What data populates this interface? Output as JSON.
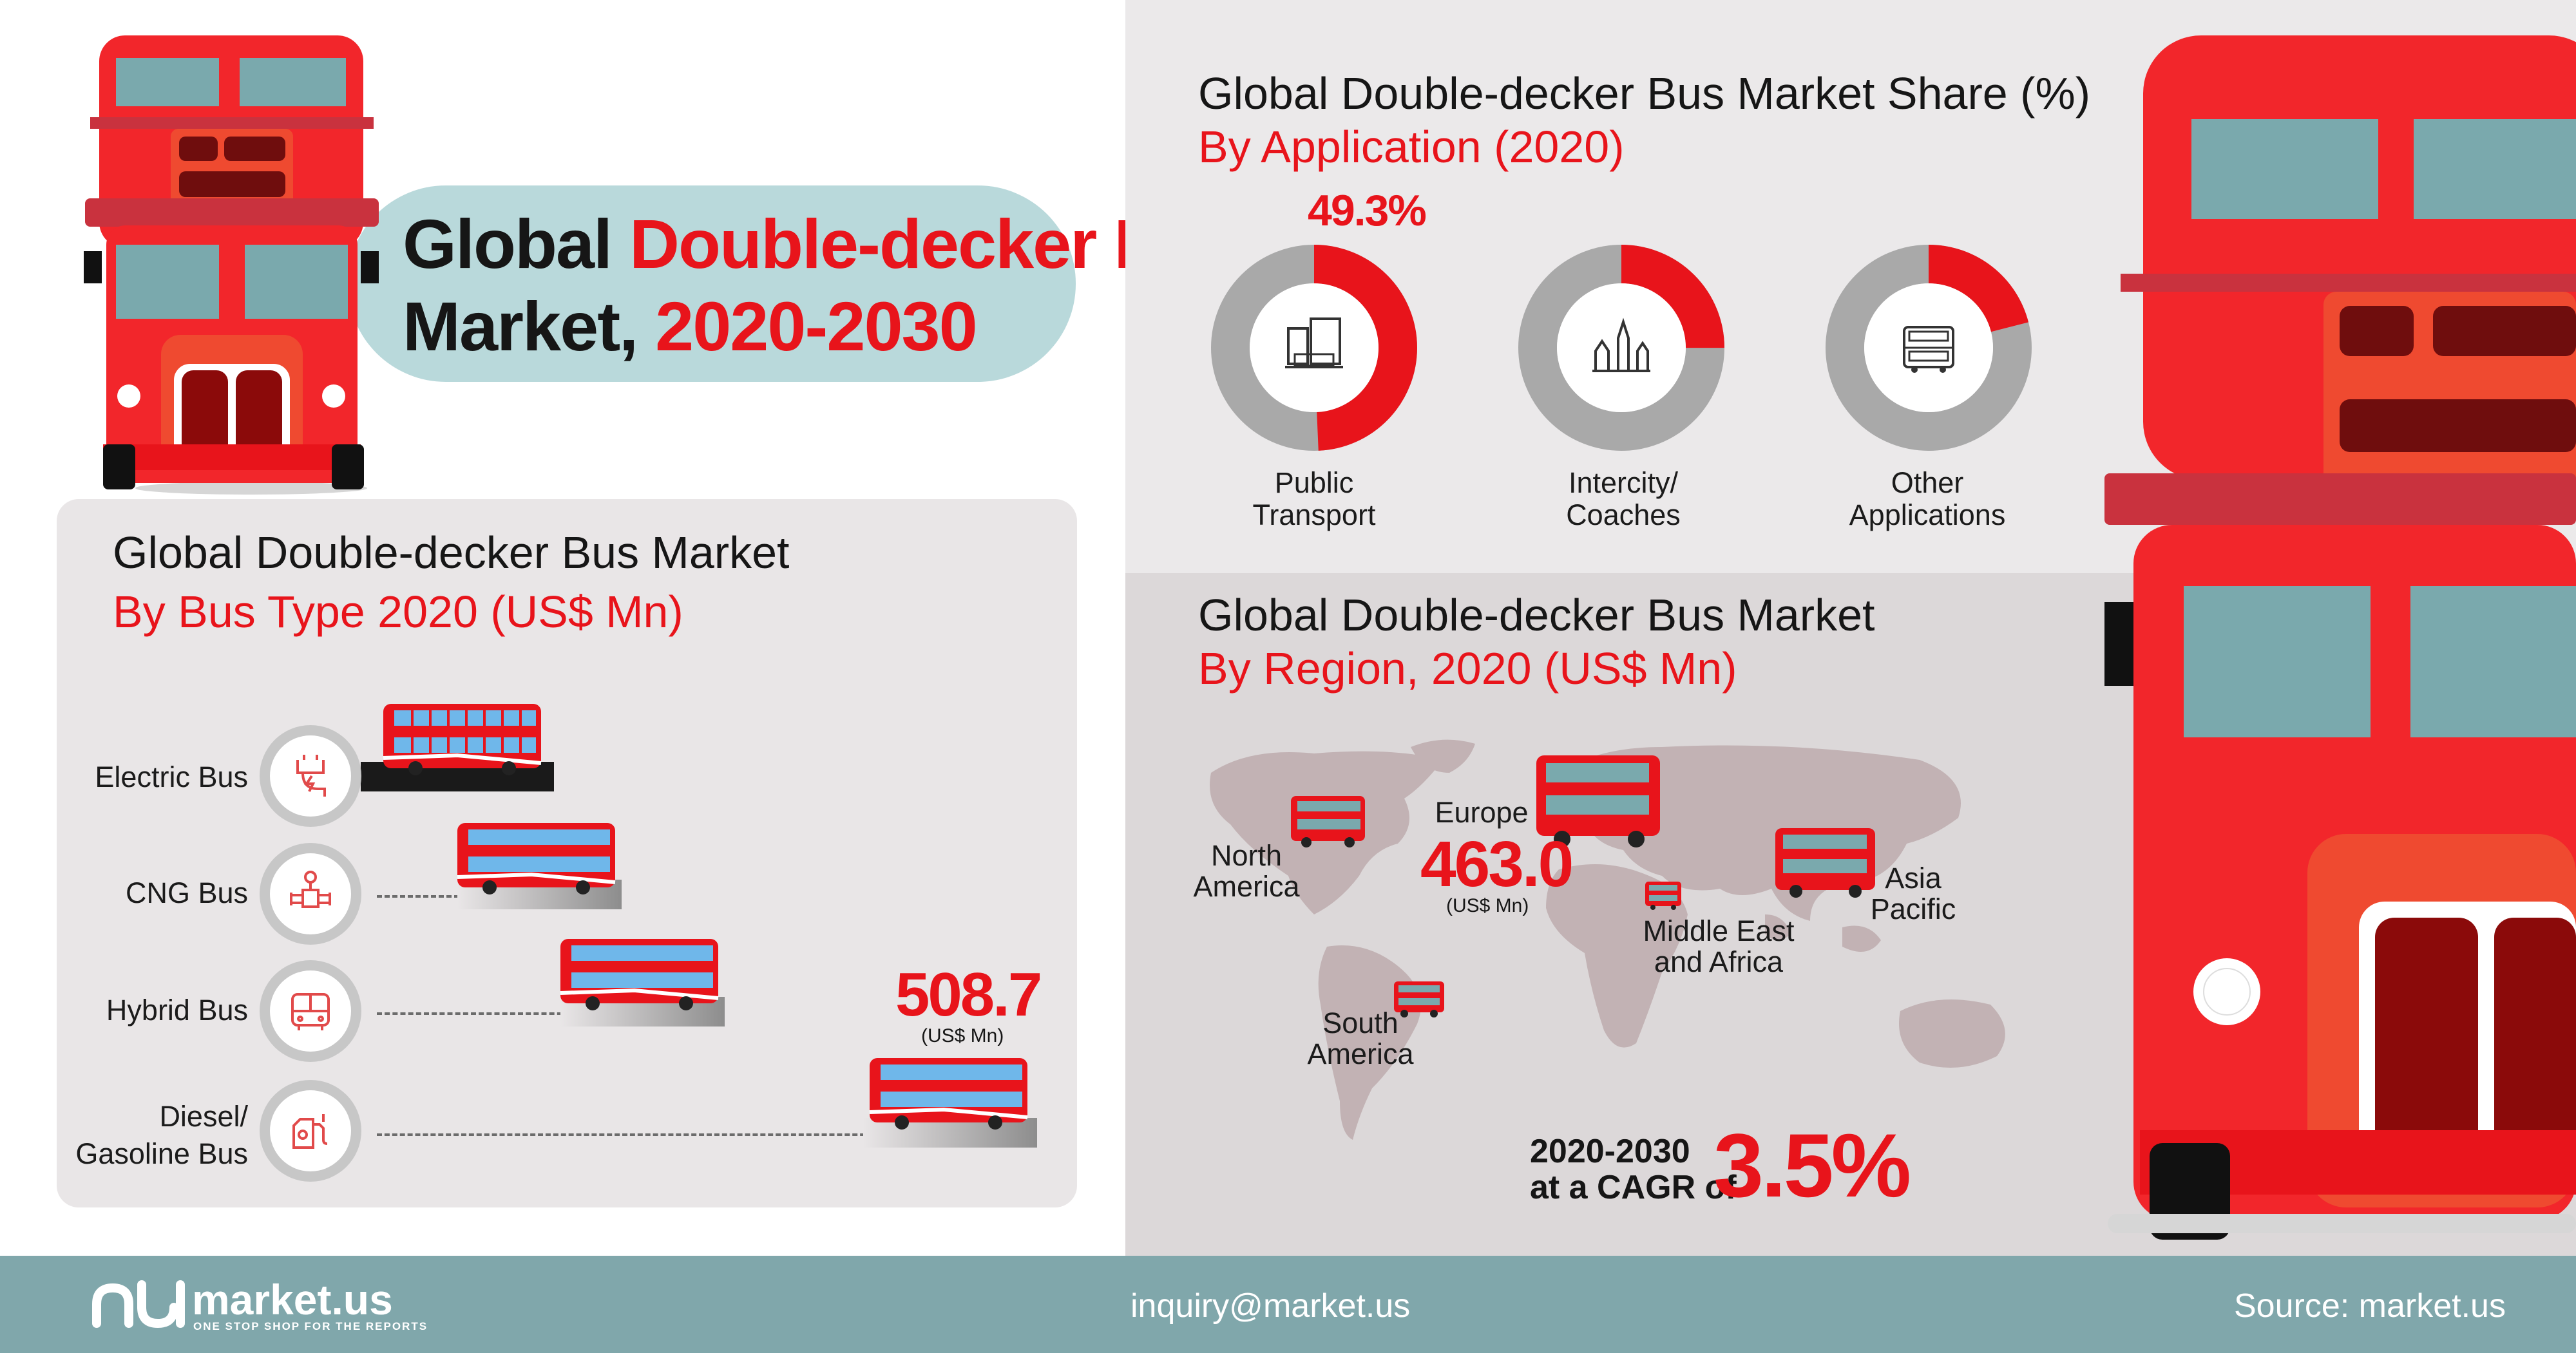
{
  "title": {
    "line1_a": "Global ",
    "line1_b": "Double-decker Bus",
    "line2_a": "Market, ",
    "line2_b": "2020-2030"
  },
  "colors": {
    "accent_red": "#e8141b",
    "pill": "#b9d9db",
    "footer": "#80a7ab",
    "ring_grey": "#a9a9a9"
  },
  "bus_type": {
    "heading": "Global Double-decker Bus Market",
    "subheading": "By Bus Type 2020 (US$ Mn)",
    "items": [
      {
        "label_lines": [
          "Electric Bus"
        ],
        "icon": "electric-plug-icon"
      },
      {
        "label_lines": [
          "CNG Bus"
        ],
        "icon": "gas-valve-icon"
      },
      {
        "label_lines": [
          "Hybrid Bus"
        ],
        "icon": "bus-icon"
      },
      {
        "label_lines": [
          "Diesel/",
          "Gasoline Bus"
        ],
        "icon": "fuel-pump-icon"
      }
    ],
    "highlight_value": "508.7",
    "highlight_unit": "(US$ Mn)"
  },
  "application": {
    "heading": "Global Double-decker Bus Market Share (%)",
    "subheading": "By Application (2020)",
    "highlight": "49.3%",
    "items": [
      {
        "label_lines": [
          "Public",
          "Transport"
        ],
        "share": 0.493,
        "icon": "city-buildings-icon"
      },
      {
        "label_lines": [
          "Intercity/",
          "Coaches"
        ],
        "share": 0.25,
        "icon": "london-landmarks-icon"
      },
      {
        "label_lines": [
          "Other",
          "Applications"
        ],
        "share": 0.21,
        "icon": "double-decker-bus-icon"
      }
    ]
  },
  "region": {
    "heading": "Global Double-decker Bus Market",
    "subheading": "By Region, 2020 (US$ Mn)",
    "labels": {
      "north_america": [
        "North",
        "America"
      ],
      "europe": [
        "Europe"
      ],
      "middle_east": [
        "Middle East",
        "and Africa"
      ],
      "asia_pacific": [
        "Asia",
        "Pacific"
      ],
      "south_america": [
        "South",
        "America"
      ]
    },
    "europe_value": "463.0",
    "europe_unit": "(US$ Mn)",
    "cagr_period": "2020-2030",
    "cagr_text": "at a CAGR of",
    "cagr_value": "3.5%"
  },
  "footer": {
    "brand": "market.us",
    "tagline": "ONE STOP SHOP FOR THE REPORTS",
    "email": "inquiry@market.us",
    "source": "Source: market.us"
  }
}
